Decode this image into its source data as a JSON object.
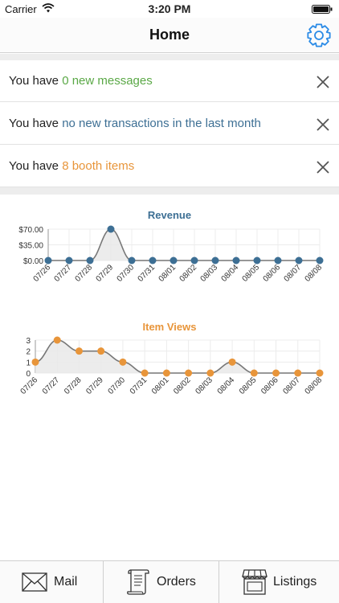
{
  "status_bar": {
    "carrier": "Carrier",
    "time": "3:20 PM"
  },
  "nav": {
    "title": "Home",
    "settings_icon": "gear-icon"
  },
  "notices": [
    {
      "prefix": "You have ",
      "highlight": "0 new messages",
      "color": "#5aa846"
    },
    {
      "prefix": "You have ",
      "highlight": "no new transactions in the last month",
      "color": "#3d6f94"
    },
    {
      "prefix": "You have ",
      "highlight": "8 booth items",
      "color": "#e8953a"
    }
  ],
  "chart_data": [
    {
      "type": "area",
      "title": "Revenue",
      "color": "#3d6f94",
      "categories": [
        "07/26",
        "07/27",
        "07/28",
        "07/29",
        "07/30",
        "07/31",
        "08/01",
        "08/02",
        "08/03",
        "08/04",
        "08/05",
        "08/06",
        "08/07",
        "08/08"
      ],
      "values": [
        0,
        0,
        0,
        70,
        0,
        0,
        0,
        0,
        0,
        0,
        0,
        0,
        0,
        0
      ],
      "yticks": [
        "$0.00",
        "$35.00",
        "$70.00"
      ],
      "ytick_values": [
        0,
        35,
        70
      ],
      "ylim": [
        0,
        70
      ],
      "grid": true
    },
    {
      "type": "area",
      "title": "Item Views",
      "color": "#e8953a",
      "categories": [
        "07/26",
        "07/27",
        "07/28",
        "07/29",
        "07/30",
        "07/31",
        "08/01",
        "08/02",
        "08/03",
        "08/04",
        "08/05",
        "08/06",
        "08/07",
        "08/08"
      ],
      "values": [
        1,
        3,
        2,
        2,
        1,
        0,
        0,
        0,
        0,
        1,
        0,
        0,
        0,
        0
      ],
      "yticks": [
        "0",
        "1",
        "2",
        "3"
      ],
      "ytick_values": [
        0,
        1,
        2,
        3
      ],
      "ylim": [
        0,
        3
      ],
      "grid": true
    }
  ],
  "tabs": [
    {
      "label": "Mail",
      "icon": "mail-icon"
    },
    {
      "label": "Orders",
      "icon": "receipt-icon"
    },
    {
      "label": "Listings",
      "icon": "storefront-icon"
    }
  ]
}
